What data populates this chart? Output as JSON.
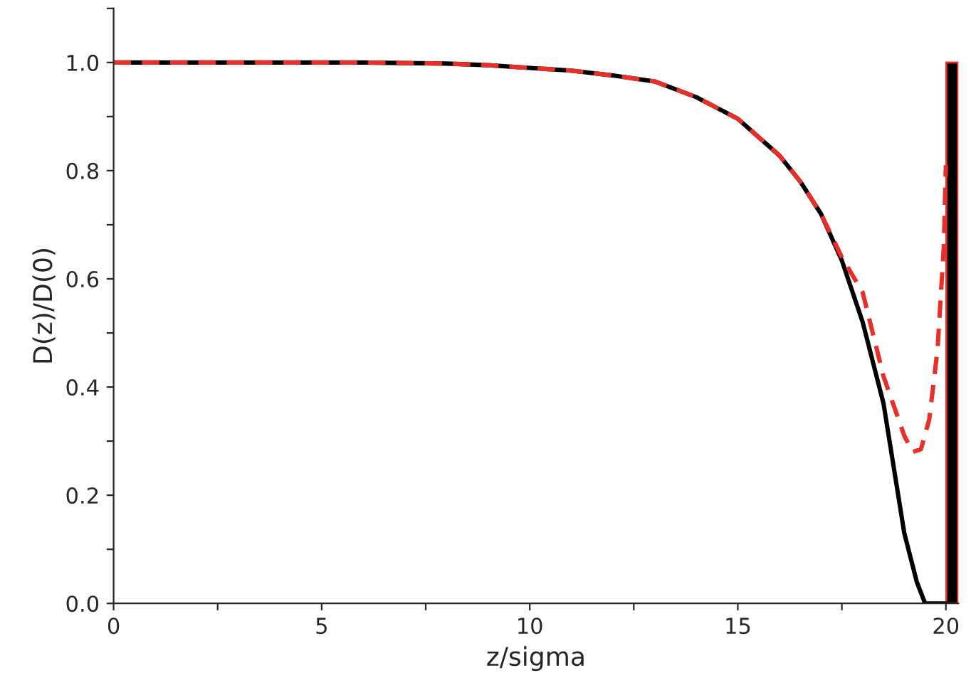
{
  "chart_data": {
    "type": "line",
    "xlabel": "z/sigma",
    "ylabel": "D(z)/D(0)",
    "xlim": [
      0,
      20.3
    ],
    "ylim": [
      0,
      1.1
    ],
    "xticks": [
      0,
      {
        "value": 2.5,
        "label": null
      },
      5,
      {
        "value": 7.5,
        "label": null
      },
      10,
      {
        "value": 12.5,
        "label": null
      },
      15,
      {
        "value": 17.5,
        "label": null
      },
      20
    ],
    "yticks": [
      {
        "value": 0,
        "label": "0.0"
      },
      {
        "value": 0.1,
        "label": null
      },
      {
        "value": 0.2,
        "label": "0.2"
      },
      {
        "value": 0.3,
        "label": null
      },
      {
        "value": 0.4,
        "label": "0.4"
      },
      {
        "value": 0.5,
        "label": null
      },
      {
        "value": 0.6,
        "label": "0.6"
      },
      {
        "value": 0.7,
        "label": null
      },
      {
        "value": 0.8,
        "label": "0.8"
      },
      {
        "value": 0.9,
        "label": null
      },
      {
        "value": 1.0,
        "label": "1.0"
      },
      {
        "value": 1.1,
        "label": null
      }
    ],
    "grid": false,
    "legend": false,
    "series": [
      {
        "color": "#000000",
        "line_style": "solid",
        "x": [
          0,
          2,
          4,
          6,
          8,
          9,
          10,
          11,
          12,
          13,
          14,
          15,
          16,
          16.5,
          17,
          17.5,
          18,
          18.5,
          19,
          19.3,
          19.5,
          20
        ],
        "values": [
          1.0,
          1.0,
          1.0,
          1.0,
          0.998,
          0.995,
          0.99,
          0.985,
          0.976,
          0.965,
          0.936,
          0.896,
          0.828,
          0.78,
          0.72,
          0.634,
          0.52,
          0.37,
          0.13,
          0.04,
          0.0,
          0.0
        ]
      },
      {
        "color": "#e8302a",
        "line_style": "dashed",
        "x": [
          0,
          2,
          4,
          6,
          8,
          9,
          10,
          11,
          12,
          13,
          14,
          15,
          16,
          16.5,
          17,
          17.5,
          18,
          18.5,
          19,
          19.2,
          19.4,
          19.6,
          19.8,
          19.95,
          20.0
        ],
        "values": [
          1.0,
          1.0,
          1.0,
          1.0,
          0.998,
          0.995,
          0.99,
          0.985,
          0.976,
          0.965,
          0.936,
          0.896,
          0.828,
          0.78,
          0.72,
          0.64,
          0.575,
          0.42,
          0.31,
          0.28,
          0.285,
          0.34,
          0.47,
          0.66,
          0.81
        ]
      },
      {
        "type": "bar",
        "color": "#000000",
        "x": [
          20.15
        ],
        "values": [
          1.0
        ]
      }
    ]
  }
}
